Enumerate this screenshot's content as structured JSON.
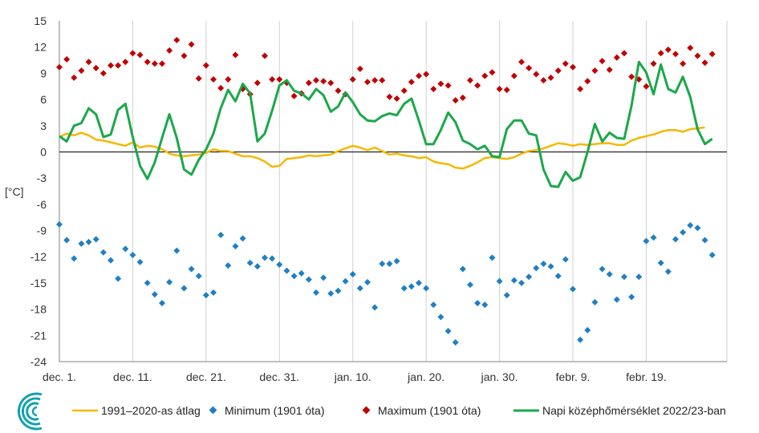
{
  "chart_data": {
    "type": "line",
    "ylabel": "[°C]",
    "ylim": [
      -24,
      15
    ],
    "yticks": [
      15,
      12,
      9,
      6,
      3,
      0,
      -3,
      -6,
      -9,
      -12,
      -15,
      -18,
      -21,
      -24
    ],
    "xlim": [
      0,
      91
    ],
    "xticks": [
      {
        "x": 0,
        "label": "dec. 1."
      },
      {
        "x": 10,
        "label": "dec. 11."
      },
      {
        "x": 20,
        "label": "dec. 21."
      },
      {
        "x": 30,
        "label": "dec. 31."
      },
      {
        "x": 40,
        "label": "jan. 10."
      },
      {
        "x": 50,
        "label": "jan. 20."
      },
      {
        "x": 60,
        "label": "jan. 30."
      },
      {
        "x": 70,
        "label": "febr. 9."
      },
      {
        "x": 80,
        "label": "febr. 19."
      }
    ],
    "grid": "vertical",
    "legend_position": "bottom",
    "colors": {
      "avg": "#f5b800",
      "min": "#1f7fc4",
      "max": "#c00000",
      "daily": "#1aa84a",
      "zero": "#000000"
    },
    "series": [
      {
        "name": "1991–2020-as átlag",
        "style": "line",
        "values": [
          1.7,
          2.1,
          1.9,
          2.2,
          1.9,
          1.4,
          1.3,
          1.1,
          0.9,
          0.7,
          1.1,
          0.5,
          0.7,
          0.6,
          0.3,
          -0.2,
          -0.4,
          -0.5,
          -0.4,
          -0.3,
          -0.1,
          0.3,
          0.1,
          0.1,
          -0.2,
          -0.5,
          -0.5,
          -0.7,
          -1.1,
          -1.7,
          -1.6,
          -0.8,
          -0.7,
          -0.6,
          -0.4,
          -0.5,
          -0.4,
          -0.3,
          0.1,
          0.4,
          0.7,
          0.5,
          0.2,
          0.5,
          0.1,
          -0.3,
          -0.2,
          -0.4,
          -0.5,
          -0.7,
          -0.6,
          -1.1,
          -1.3,
          -1.4,
          -1.8,
          -1.9,
          -1.6,
          -1.2,
          -0.7,
          -0.6,
          -0.7,
          -0.8,
          -0.6,
          -0.2,
          0.1,
          0.2,
          0.4,
          0.7,
          1.0,
          0.9,
          0.7,
          0.9,
          0.8,
          0.9,
          1.0,
          1.0,
          0.8,
          0.8,
          1.3,
          1.6,
          1.8,
          2.0,
          2.3,
          2.5,
          2.5,
          2.3,
          2.6,
          2.7,
          2.8
        ]
      },
      {
        "name": "Minimum (1901 óta)",
        "style": "marker-diamond",
        "values": [
          -8.3,
          -10.1,
          -12.2,
          -10.5,
          -10.3,
          -10.0,
          -11.5,
          -12.4,
          -14.5,
          -11.1,
          -11.8,
          -12.6,
          -15.0,
          -16.3,
          -17.3,
          -14.9,
          -11.3,
          -15.6,
          -13.4,
          -14.2,
          -16.4,
          -16.1,
          -9.5,
          -13.0,
          -10.8,
          -9.9,
          -12.7,
          -13.1,
          -12.1,
          -12.2,
          -12.9,
          -13.6,
          -14.2,
          -13.9,
          -14.6,
          -16.1,
          -14.4,
          -16.2,
          -15.9,
          -14.8,
          -14.0,
          -15.6,
          -14.9,
          -17.8,
          -12.8,
          -12.8,
          -12.5,
          -15.6,
          -15.4,
          -15.0,
          -15.6,
          -17.5,
          -18.9,
          -20.5,
          -21.8,
          -13.4,
          -15.2,
          -17.3,
          -17.5,
          -12.1,
          -14.8,
          -16.4,
          -14.7,
          -15.0,
          -14.3,
          -13.3,
          -12.8,
          -13.1,
          -14.2,
          -12.3,
          -15.7,
          -21.5,
          -20.4,
          -17.2,
          -13.4,
          -14.0,
          -16.9,
          -14.3,
          -16.6,
          -14.3,
          -10.2,
          -9.8,
          -12.7,
          -13.7,
          -10.0,
          -9.2,
          -8.4,
          -8.7,
          -10.1,
          -11.8
        ]
      },
      {
        "name": "Maximum (1901 óta)",
        "style": "marker-diamond",
        "values": [
          9.7,
          10.6,
          8.5,
          9.3,
          10.3,
          9.6,
          9.0,
          9.9,
          9.9,
          10.3,
          11.3,
          11.1,
          10.3,
          10.1,
          10.1,
          11.6,
          12.8,
          11.0,
          12.3,
          8.4,
          9.9,
          8.3,
          7.3,
          8.3,
          11.1,
          7.2,
          6.6,
          7.9,
          11.0,
          8.3,
          8.3,
          7.9,
          6.4,
          6.7,
          7.9,
          8.2,
          8.1,
          7.9,
          7.0,
          6.6,
          8.3,
          9.5,
          8.0,
          8.2,
          8.2,
          6.3,
          6.1,
          7.0,
          8.0,
          8.7,
          8.9,
          7.2,
          7.8,
          7.6,
          5.9,
          6.2,
          8.2,
          7.6,
          8.7,
          9.1,
          7.2,
          7.1,
          8.7,
          10.3,
          9.6,
          8.9,
          8.2,
          8.5,
          9.3,
          10.1,
          9.7,
          7.2,
          8.1,
          9.3,
          10.4,
          9.4,
          10.8,
          11.3,
          8.6,
          8.3,
          7.5,
          10.1,
          11.3,
          11.7,
          11.2,
          10.1,
          11.9,
          11.0,
          10.2,
          11.2
        ]
      },
      {
        "name": "Napi középhőmérséklet 2022/23-ban",
        "style": "line",
        "values": [
          1.8,
          1.2,
          3.0,
          3.3,
          5.0,
          4.3,
          1.7,
          2.0,
          4.8,
          5.5,
          1.7,
          -1.6,
          -3.1,
          -1.2,
          1.6,
          4.3,
          1.6,
          -2.0,
          -2.6,
          -0.9,
          0.3,
          2.1,
          5.0,
          7.1,
          5.8,
          7.8,
          6.7,
          1.2,
          2.1,
          4.7,
          7.6,
          8.2,
          7.0,
          6.7,
          6.0,
          7.2,
          6.5,
          4.6,
          5.2,
          6.8,
          5.7,
          4.3,
          3.6,
          3.5,
          4.1,
          4.4,
          4.2,
          5.5,
          6.1,
          3.6,
          0.9,
          0.9,
          2.5,
          4.5,
          3.4,
          1.3,
          0.9,
          0.3,
          0.7,
          -0.5,
          -0.6,
          2.6,
          3.6,
          3.6,
          2.1,
          1.9,
          -2.0,
          -3.9,
          -4.0,
          -2.3,
          -3.3,
          -2.9,
          0.0,
          3.2,
          1.2,
          2.2,
          1.6,
          1.5,
          5.3,
          10.3,
          9.1,
          6.6,
          10.0,
          7.2,
          6.8,
          8.6,
          6.3,
          2.6,
          0.9,
          1.5
        ]
      }
    ]
  }
}
